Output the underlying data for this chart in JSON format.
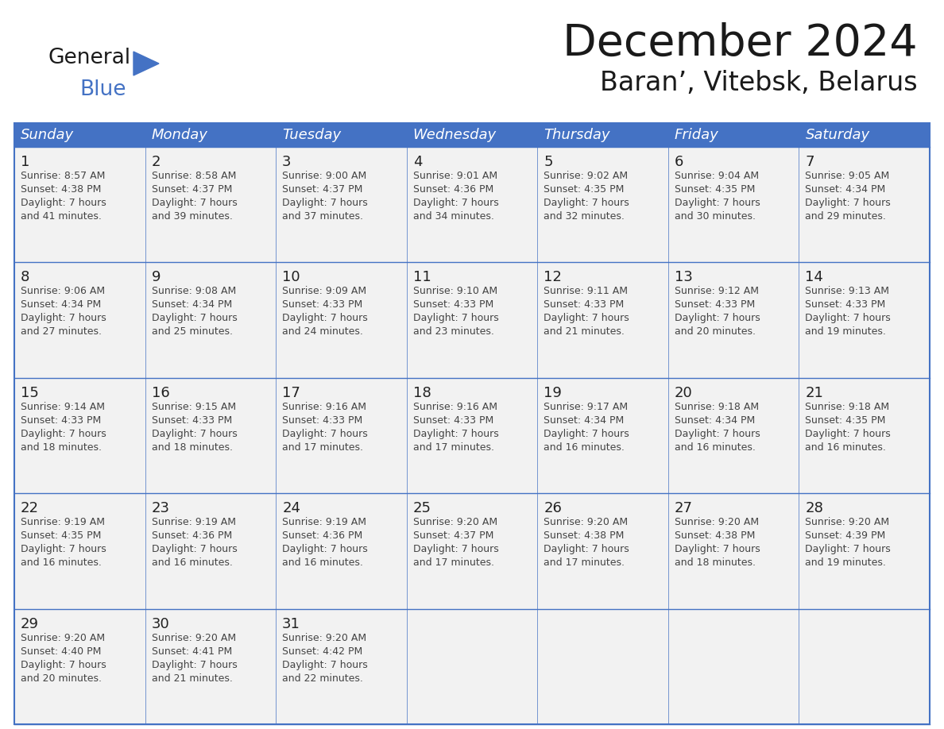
{
  "title": "December 2024",
  "subtitle": "Baran’, Vitebsk, Belarus",
  "header_color": "#4472C4",
  "header_text_color": "#FFFFFF",
  "cell_bg_color": "#F2F2F2",
  "grid_line_color": "#4472C4",
  "days_of_week": [
    "Sunday",
    "Monday",
    "Tuesday",
    "Wednesday",
    "Thursday",
    "Friday",
    "Saturday"
  ],
  "weeks": [
    [
      {
        "day": 1,
        "sunrise": "8:57 AM",
        "sunset": "4:38 PM",
        "daylight_min": "41 minutes."
      },
      {
        "day": 2,
        "sunrise": "8:58 AM",
        "sunset": "4:37 PM",
        "daylight_min": "39 minutes."
      },
      {
        "day": 3,
        "sunrise": "9:00 AM",
        "sunset": "4:37 PM",
        "daylight_min": "37 minutes."
      },
      {
        "day": 4,
        "sunrise": "9:01 AM",
        "sunset": "4:36 PM",
        "daylight_min": "34 minutes."
      },
      {
        "day": 5,
        "sunrise": "9:02 AM",
        "sunset": "4:35 PM",
        "daylight_min": "32 minutes."
      },
      {
        "day": 6,
        "sunrise": "9:04 AM",
        "sunset": "4:35 PM",
        "daylight_min": "30 minutes."
      },
      {
        "day": 7,
        "sunrise": "9:05 AM",
        "sunset": "4:34 PM",
        "daylight_min": "29 minutes."
      }
    ],
    [
      {
        "day": 8,
        "sunrise": "9:06 AM",
        "sunset": "4:34 PM",
        "daylight_min": "27 minutes."
      },
      {
        "day": 9,
        "sunrise": "9:08 AM",
        "sunset": "4:34 PM",
        "daylight_min": "25 minutes."
      },
      {
        "day": 10,
        "sunrise": "9:09 AM",
        "sunset": "4:33 PM",
        "daylight_min": "24 minutes."
      },
      {
        "day": 11,
        "sunrise": "9:10 AM",
        "sunset": "4:33 PM",
        "daylight_min": "23 minutes."
      },
      {
        "day": 12,
        "sunrise": "9:11 AM",
        "sunset": "4:33 PM",
        "daylight_min": "21 minutes."
      },
      {
        "day": 13,
        "sunrise": "9:12 AM",
        "sunset": "4:33 PM",
        "daylight_min": "20 minutes."
      },
      {
        "day": 14,
        "sunrise": "9:13 AM",
        "sunset": "4:33 PM",
        "daylight_min": "19 minutes."
      }
    ],
    [
      {
        "day": 15,
        "sunrise": "9:14 AM",
        "sunset": "4:33 PM",
        "daylight_min": "18 minutes."
      },
      {
        "day": 16,
        "sunrise": "9:15 AM",
        "sunset": "4:33 PM",
        "daylight_min": "18 minutes."
      },
      {
        "day": 17,
        "sunrise": "9:16 AM",
        "sunset": "4:33 PM",
        "daylight_min": "17 minutes."
      },
      {
        "day": 18,
        "sunrise": "9:16 AM",
        "sunset": "4:33 PM",
        "daylight_min": "17 minutes."
      },
      {
        "day": 19,
        "sunrise": "9:17 AM",
        "sunset": "4:34 PM",
        "daylight_min": "16 minutes."
      },
      {
        "day": 20,
        "sunrise": "9:18 AM",
        "sunset": "4:34 PM",
        "daylight_min": "16 minutes."
      },
      {
        "day": 21,
        "sunrise": "9:18 AM",
        "sunset": "4:35 PM",
        "daylight_min": "16 minutes."
      }
    ],
    [
      {
        "day": 22,
        "sunrise": "9:19 AM",
        "sunset": "4:35 PM",
        "daylight_min": "16 minutes."
      },
      {
        "day": 23,
        "sunrise": "9:19 AM",
        "sunset": "4:36 PM",
        "daylight_min": "16 minutes."
      },
      {
        "day": 24,
        "sunrise": "9:19 AM",
        "sunset": "4:36 PM",
        "daylight_min": "16 minutes."
      },
      {
        "day": 25,
        "sunrise": "9:20 AM",
        "sunset": "4:37 PM",
        "daylight_min": "17 minutes."
      },
      {
        "day": 26,
        "sunrise": "9:20 AM",
        "sunset": "4:38 PM",
        "daylight_min": "17 minutes."
      },
      {
        "day": 27,
        "sunrise": "9:20 AM",
        "sunset": "4:38 PM",
        "daylight_min": "18 minutes."
      },
      {
        "day": 28,
        "sunrise": "9:20 AM",
        "sunset": "4:39 PM",
        "daylight_min": "19 minutes."
      }
    ],
    [
      {
        "day": 29,
        "sunrise": "9:20 AM",
        "sunset": "4:40 PM",
        "daylight_min": "20 minutes."
      },
      {
        "day": 30,
        "sunrise": "9:20 AM",
        "sunset": "4:41 PM",
        "daylight_min": "21 minutes."
      },
      {
        "day": 31,
        "sunrise": "9:20 AM",
        "sunset": "4:42 PM",
        "daylight_min": "22 minutes."
      },
      null,
      null,
      null,
      null
    ]
  ]
}
